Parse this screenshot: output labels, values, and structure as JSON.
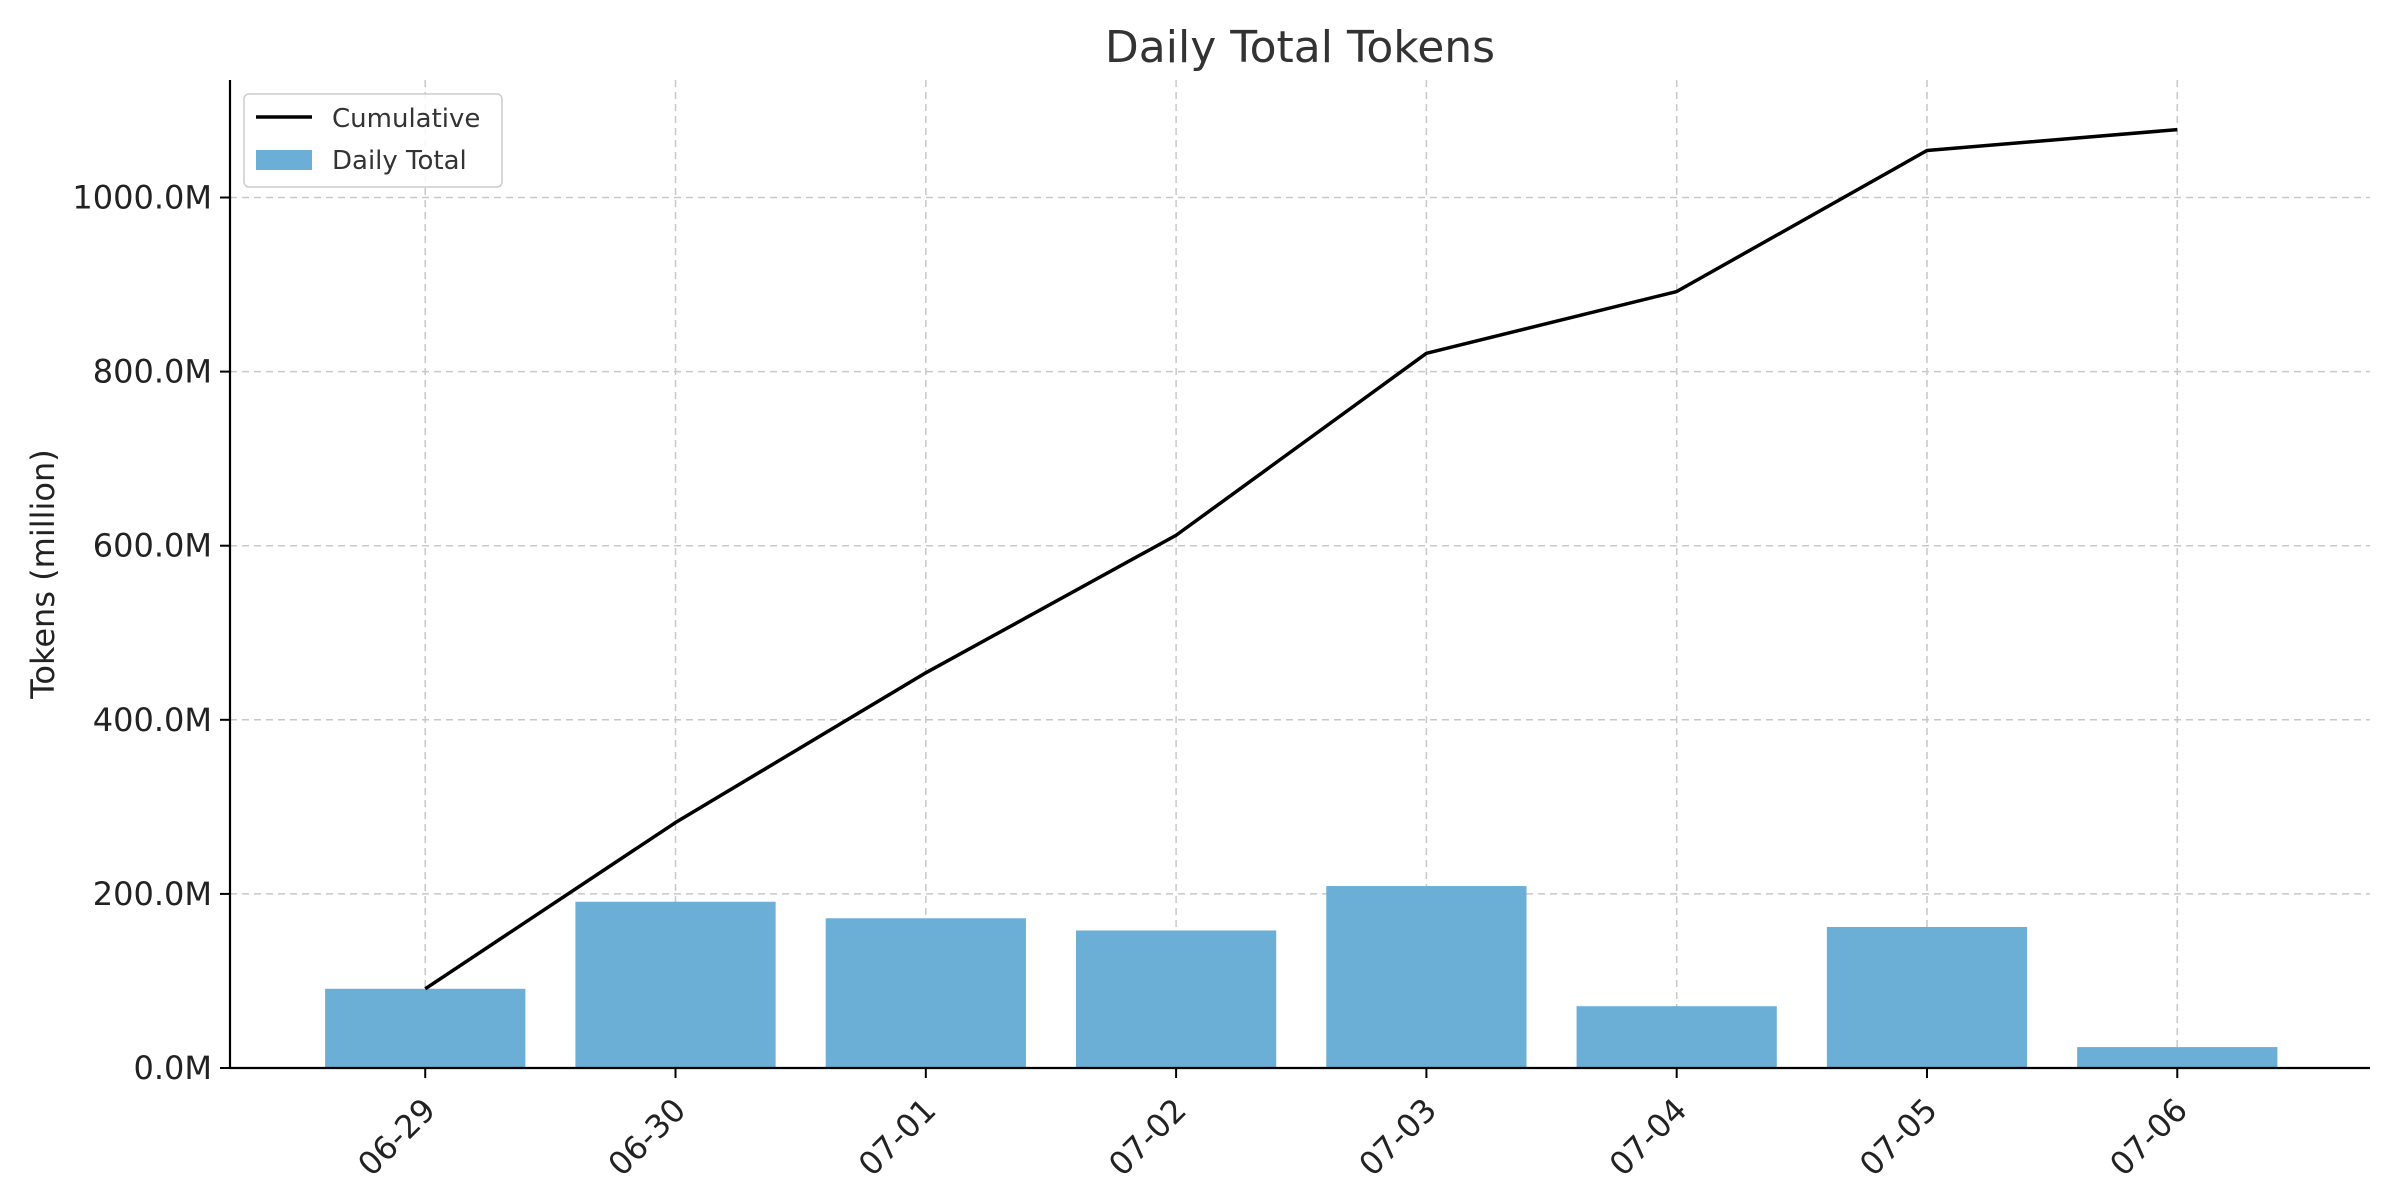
{
  "chart_data": {
    "type": "bar",
    "title": "Daily Total Tokens",
    "xlabel": "",
    "ylabel": "Tokens (million)",
    "categories": [
      "06-29",
      "06-30",
      "07-01",
      "07-02",
      "07-03",
      "07-04",
      "07-05",
      "07-06"
    ],
    "series": [
      {
        "name": "Daily Total",
        "type": "bar",
        "color": "#6baed6",
        "values": [
          91,
          191,
          172,
          158,
          209,
          71,
          162,
          24
        ]
      },
      {
        "name": "Cumulative",
        "type": "line",
        "color": "#000000",
        "values": [
          91,
          282,
          454,
          612,
          821,
          892,
          1054,
          1078
        ]
      }
    ],
    "ylim": [
      0,
      1135
    ],
    "yticks": [
      0,
      200,
      400,
      600,
      800,
      1000
    ],
    "ytick_labels": [
      "0.0M",
      "200.0M",
      "400.0M",
      "600.0M",
      "800.0M",
      "1000.0M"
    ],
    "grid": true,
    "legend_position": "top-left"
  }
}
